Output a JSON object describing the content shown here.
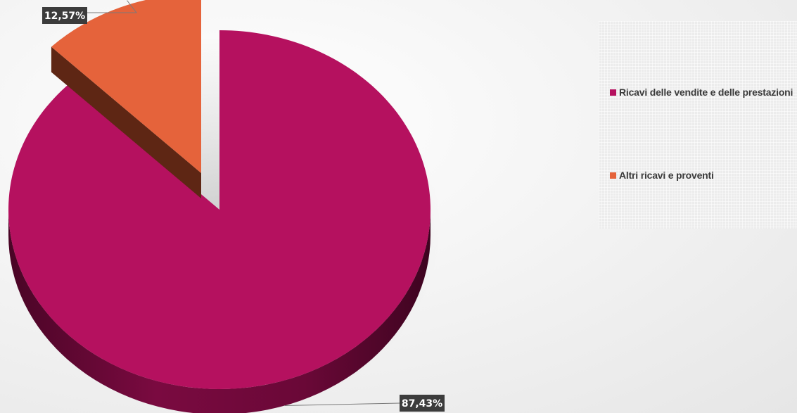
{
  "chart_data": {
    "type": "pie",
    "style": "3d-exploded",
    "slices": [
      {
        "name": "Ricavi delle vendite e delle prestazioni",
        "value": 87.43,
        "label": "87,43%",
        "color": "#b5115f",
        "side_color": "#6e0839"
      },
      {
        "name": "Altri ricavi e proventi",
        "value": 12.57,
        "label": "12,57%",
        "color": "#e5633b",
        "side_color": "#5e2614"
      }
    ],
    "legend": {
      "placement": "right",
      "items": [
        {
          "label": "Ricavi delle vendite e delle prestazioni",
          "color": "#b5115f"
        },
        {
          "label": "Altri ricavi e proventi",
          "color": "#e5633b"
        }
      ]
    },
    "label_background": "#3c3c3c"
  }
}
